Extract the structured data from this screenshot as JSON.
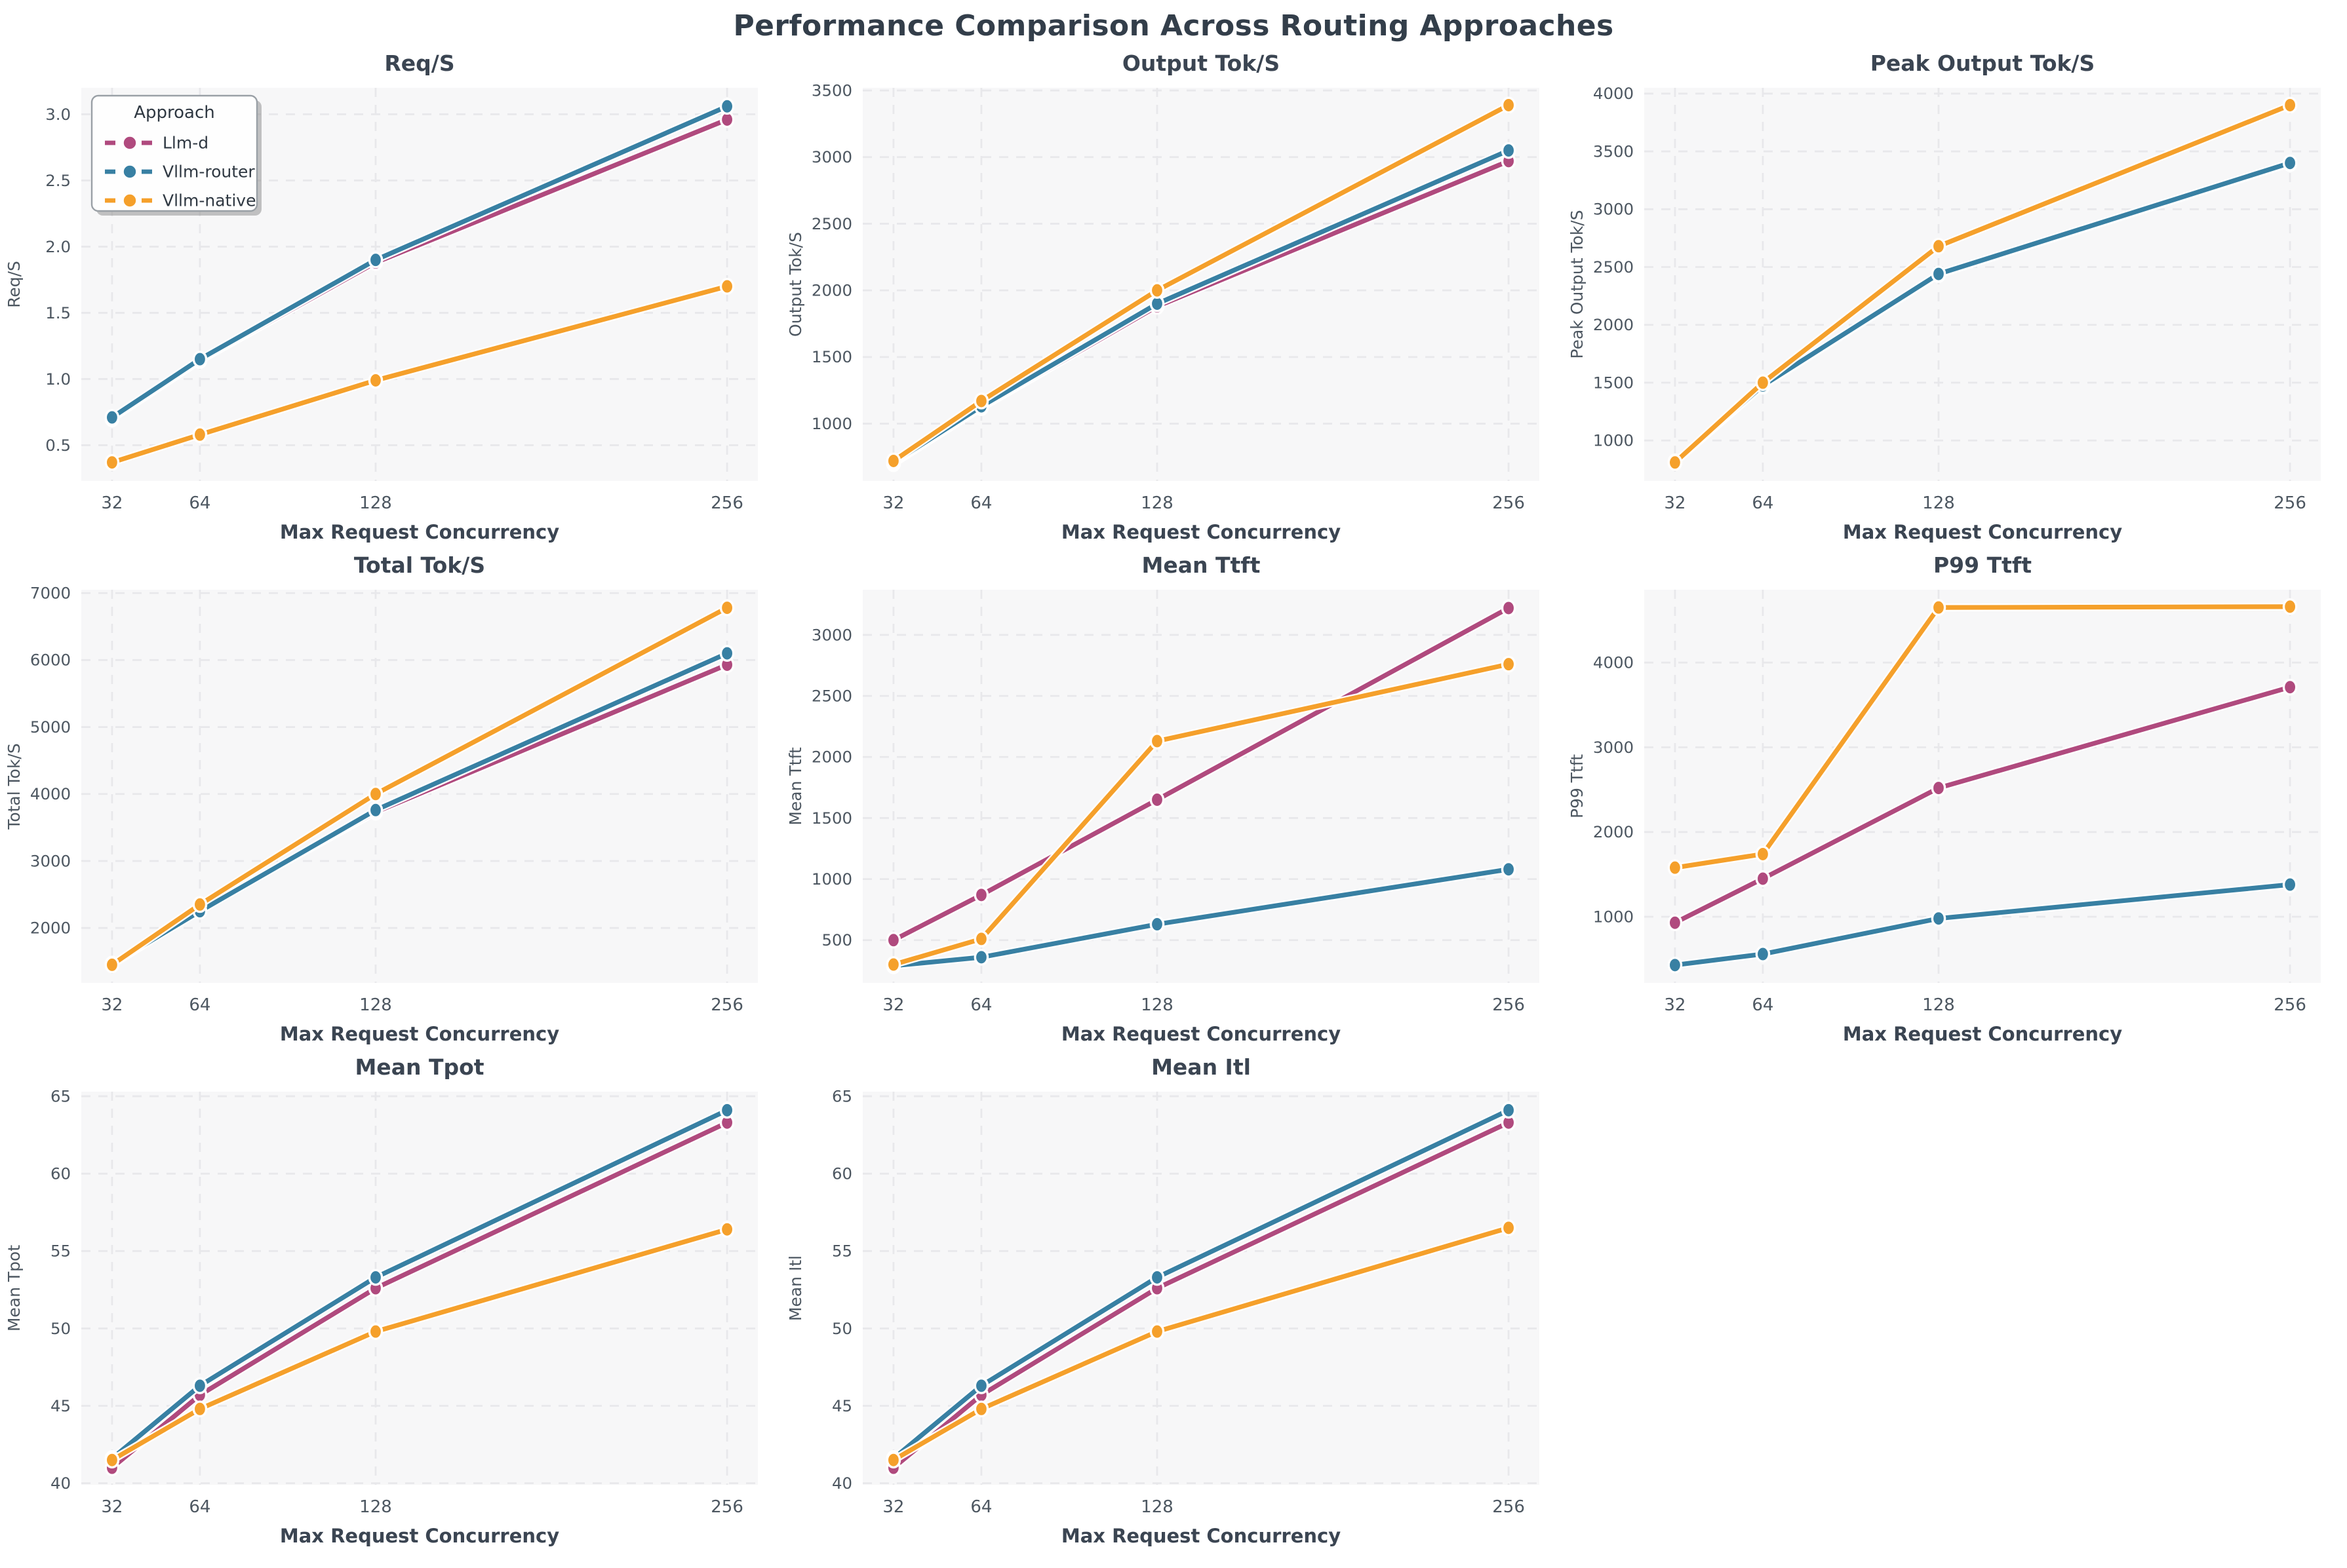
{
  "figure": {
    "title": "Performance Comparison Across Routing Approaches"
  },
  "colors": {
    "figure_bg": "#ffffff",
    "plot_bg": "#f7f7f8",
    "grid": "#e8e8eb",
    "title_text": "#3b4552",
    "label_text": "#3b4552",
    "tick_text": "#4d5761",
    "legend_border": "#9aa0a6",
    "legend_bg": "#fefefe",
    "legend_shadow": "#8a8a8a"
  },
  "legend": {
    "title": "Approach",
    "items": [
      {
        "label": "Llm-d",
        "color": "#b04a7e"
      },
      {
        "label": "Vllm-router",
        "color": "#3880a3"
      },
      {
        "label": "Vllm-native",
        "color": "#f5a02b"
      }
    ]
  },
  "axis": {
    "xlabel": "Max Request Concurrency",
    "x_ticks": [
      32,
      64,
      128,
      256
    ],
    "x_tick_labels": [
      "32",
      "64",
      "128",
      "256"
    ]
  },
  "chart_data": [
    {
      "type": "line",
      "title": "Req/S",
      "ylabel": "Req/S",
      "x": [
        32,
        64,
        128,
        256
      ],
      "ylim": [
        0.23,
        3.2
      ],
      "yticks": [
        0.5,
        1.0,
        1.5,
        2.0,
        2.5,
        3.0
      ],
      "ytick_labels": [
        "0.5",
        "1.0",
        "1.5",
        "2.0",
        "2.5",
        "3.0"
      ],
      "show_legend": true,
      "grid": true,
      "legend_position": "upper-left",
      "series": [
        {
          "name": "Llm-d",
          "values": [
            0.7,
            1.14,
            1.88,
            2.96
          ]
        },
        {
          "name": "Vllm-router",
          "values": [
            0.71,
            1.15,
            1.9,
            3.06
          ]
        },
        {
          "name": "Vllm-native",
          "values": [
            0.37,
            0.58,
            0.99,
            1.7
          ]
        }
      ]
    },
    {
      "type": "line",
      "title": "Output Tok/S",
      "ylabel": "Output Tok/S",
      "x": [
        32,
        64,
        128,
        256
      ],
      "ylim": [
        570,
        3520
      ],
      "yticks": [
        1000,
        1500,
        2000,
        2500,
        3000,
        3500
      ],
      "ytick_labels": [
        "1000",
        "1500",
        "2000",
        "2500",
        "3000",
        "3500"
      ],
      "show_legend": false,
      "grid": true,
      "series": [
        {
          "name": "Llm-d",
          "values": [
            700,
            1120,
            1880,
            2970
          ]
        },
        {
          "name": "Vllm-router",
          "values": [
            710,
            1130,
            1900,
            3050
          ]
        },
        {
          "name": "Vllm-native",
          "values": [
            720,
            1170,
            2000,
            3390
          ]
        }
      ]
    },
    {
      "type": "line",
      "title": "Peak Output Tok/S",
      "ylabel": "Peak Output Tok/S",
      "x": [
        32,
        64,
        128,
        256
      ],
      "ylim": [
        650,
        4050
      ],
      "yticks": [
        1000,
        1500,
        2000,
        2500,
        3000,
        3500,
        4000
      ],
      "ytick_labels": [
        "1000",
        "1500",
        "2000",
        "2500",
        "3000",
        "3500",
        "4000"
      ],
      "show_legend": false,
      "grid": true,
      "series": [
        {
          "name": "Llm-d",
          "values": [
            815,
            1470,
            2435,
            3395
          ]
        },
        {
          "name": "Vllm-router",
          "values": [
            810,
            1475,
            2440,
            3400
          ]
        },
        {
          "name": "Vllm-native",
          "values": [
            810,
            1500,
            2680,
            3900
          ]
        }
      ]
    },
    {
      "type": "line",
      "title": "Total Tok/S",
      "ylabel": "Total Tok/S",
      "x": [
        32,
        64,
        128,
        256
      ],
      "ylim": [
        1180,
        7050
      ],
      "yticks": [
        2000,
        3000,
        4000,
        5000,
        6000,
        7000
      ],
      "ytick_labels": [
        "2000",
        "3000",
        "4000",
        "5000",
        "6000",
        "7000"
      ],
      "show_legend": false,
      "grid": true,
      "series": [
        {
          "name": "Llm-d",
          "values": [
            1450,
            2270,
            3730,
            5930
          ]
        },
        {
          "name": "Vllm-router",
          "values": [
            1460,
            2250,
            3760,
            6100
          ]
        },
        {
          "name": "Vllm-native",
          "values": [
            1450,
            2350,
            4000,
            6780
          ]
        }
      ]
    },
    {
      "type": "line",
      "title": "Mean Ttft",
      "ylabel": "Mean Ttft",
      "x": [
        32,
        64,
        128,
        256
      ],
      "ylim": [
        150,
        3370
      ],
      "yticks": [
        500,
        1000,
        1500,
        2000,
        2500,
        3000
      ],
      "ytick_labels": [
        "500",
        "1000",
        "1500",
        "2000",
        "2500",
        "3000"
      ],
      "show_legend": false,
      "grid": true,
      "series": [
        {
          "name": "Llm-d",
          "values": [
            500,
            870,
            1650,
            3220
          ]
        },
        {
          "name": "Vllm-router",
          "values": [
            290,
            360,
            630,
            1080
          ]
        },
        {
          "name": "Vllm-native",
          "values": [
            300,
            510,
            2130,
            2760
          ]
        }
      ]
    },
    {
      "type": "line",
      "title": "P99 Ttft",
      "ylabel": "P99 Ttft",
      "x": [
        32,
        64,
        128,
        256
      ],
      "ylim": [
        220,
        4860
      ],
      "yticks": [
        1000,
        2000,
        3000,
        4000
      ],
      "ytick_labels": [
        "1000",
        "2000",
        "3000",
        "4000"
      ],
      "show_legend": false,
      "grid": true,
      "series": [
        {
          "name": "Llm-d",
          "values": [
            930,
            1450,
            2520,
            3710
          ]
        },
        {
          "name": "Vllm-router",
          "values": [
            430,
            560,
            980,
            1380
          ]
        },
        {
          "name": "Vllm-native",
          "values": [
            1580,
            1740,
            4650,
            4660
          ]
        }
      ]
    },
    {
      "type": "line",
      "title": "Mean Tpot",
      "ylabel": "Mean Tpot",
      "x": [
        32,
        64,
        128,
        256
      ],
      "ylim": [
        39.9,
        65.3
      ],
      "yticks": [
        40,
        45,
        50,
        55,
        60,
        65
      ],
      "ytick_labels": [
        "40",
        "45",
        "50",
        "55",
        "60",
        "65"
      ],
      "show_legend": false,
      "grid": true,
      "series": [
        {
          "name": "Llm-d",
          "values": [
            41.0,
            45.7,
            52.6,
            63.3
          ]
        },
        {
          "name": "Vllm-router",
          "values": [
            41.6,
            46.3,
            53.3,
            64.1
          ]
        },
        {
          "name": "Vllm-native",
          "values": [
            41.5,
            44.8,
            49.8,
            56.4
          ]
        }
      ]
    },
    {
      "type": "line",
      "title": "Mean Itl",
      "ylabel": "Mean Itl",
      "x": [
        32,
        64,
        128,
        256
      ],
      "ylim": [
        39.9,
        65.3
      ],
      "yticks": [
        40,
        45,
        50,
        55,
        60,
        65
      ],
      "ytick_labels": [
        "40",
        "45",
        "50",
        "55",
        "60",
        "65"
      ],
      "show_legend": false,
      "grid": true,
      "series": [
        {
          "name": "Llm-d",
          "values": [
            41.0,
            45.7,
            52.6,
            63.3
          ]
        },
        {
          "name": "Vllm-router",
          "values": [
            41.6,
            46.3,
            53.3,
            64.1
          ]
        },
        {
          "name": "Vllm-native",
          "values": [
            41.5,
            44.8,
            49.8,
            56.5
          ]
        }
      ]
    }
  ]
}
